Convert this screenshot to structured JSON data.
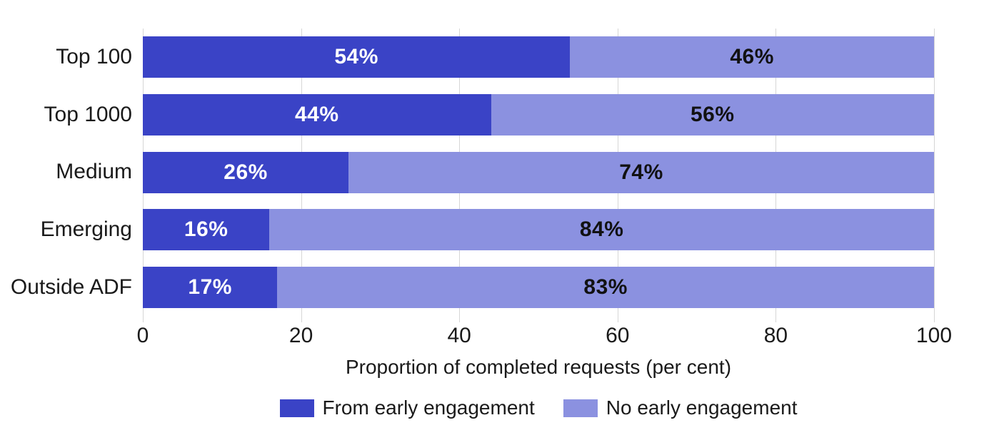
{
  "chart_data": {
    "type": "bar",
    "orientation": "horizontal",
    "stacked": true,
    "categories": [
      "Top 100",
      "Top 1000",
      "Medium",
      "Emerging",
      "Outside ADF"
    ],
    "series": [
      {
        "name": "From early engagement",
        "values": [
          54,
          44,
          26,
          16,
          17
        ],
        "color": "#3a43c6",
        "label_color": "#ffffff"
      },
      {
        "name": "No early engagement",
        "values": [
          46,
          56,
          74,
          84,
          83
        ],
        "color": "#8b91e0",
        "label_color": "#111111"
      }
    ],
    "value_suffix": "%",
    "xlabel": "Proportion of completed requests (per cent)",
    "x_ticks": [
      0,
      20,
      40,
      60,
      80,
      100
    ],
    "xlim": [
      0,
      100
    ],
    "grid": true,
    "gridline_color": "#d6d6d6",
    "legend_position": "bottom"
  }
}
